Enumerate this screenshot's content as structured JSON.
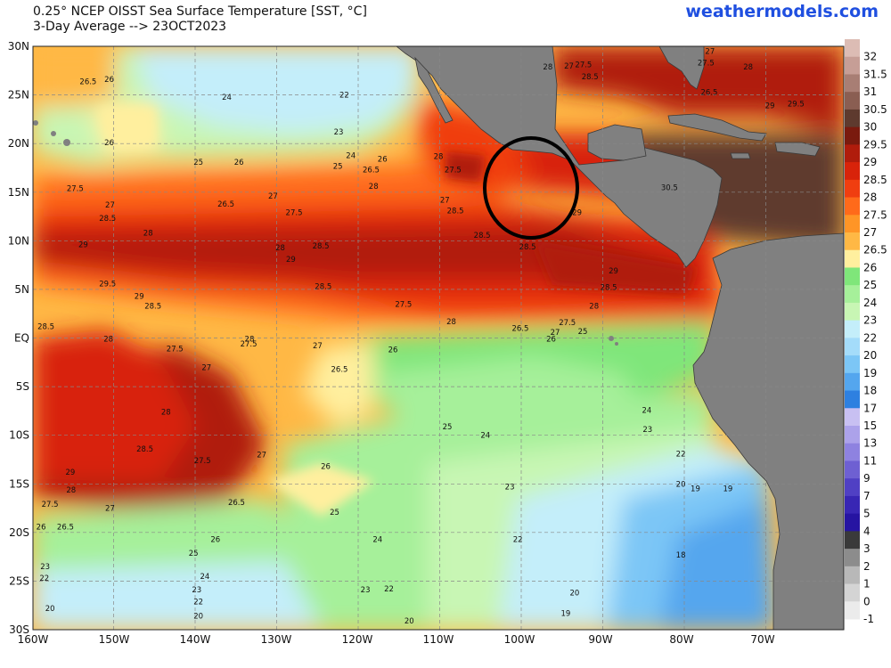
{
  "header": {
    "title_line1": "0.25° NCEP OISST Sea Surface Temperature [SST, °C]",
    "title_line2": "3-Day Average --> 23OCT2023",
    "brand": "weathermodels.com"
  },
  "axes": {
    "lat_labels": [
      "30N",
      "25N",
      "20N",
      "15N",
      "10N",
      "5N",
      "EQ",
      "5S",
      "10S",
      "15S",
      "20S",
      "25S",
      "30S"
    ],
    "lon_labels": [
      "160W",
      "150W",
      "140W",
      "130W",
      "120W",
      "110W",
      "100W",
      "90W",
      "80W",
      "70W"
    ]
  },
  "legend": {
    "levels": [
      {
        "label": "32",
        "color": "#dcbcb4"
      },
      {
        "label": "31.5",
        "color": "#c69e96"
      },
      {
        "label": "31",
        "color": "#a87e74"
      },
      {
        "label": "30.5",
        "color": "#8a5e52"
      },
      {
        "label": "30",
        "color": "#5e3a2e"
      },
      {
        "label": "29.5",
        "color": "#7a1a0e"
      },
      {
        "label": "29",
        "color": "#b01c0c"
      },
      {
        "label": "28.5",
        "color": "#d8230a"
      },
      {
        "label": "28",
        "color": "#f03e10"
      },
      {
        "label": "27.5",
        "color": "#ff6a1a"
      },
      {
        "label": "27",
        "color": "#ff9526"
      },
      {
        "label": "26.5",
        "color": "#ffb845"
      },
      {
        "label": "26",
        "color": "#ffef9e"
      },
      {
        "label": "25",
        "color": "#7fe67a"
      },
      {
        "label": "24",
        "color": "#a6f09a"
      },
      {
        "label": "23",
        "color": "#c8f6b4"
      },
      {
        "label": "22",
        "color": "#c4eefa"
      },
      {
        "label": "20",
        "color": "#a4dcfa"
      },
      {
        "label": "19",
        "color": "#7cc6f6"
      },
      {
        "label": "18",
        "color": "#54a6ee"
      },
      {
        "label": "17",
        "color": "#2e80e0"
      },
      {
        "label": "15",
        "color": "#c8c0f2"
      },
      {
        "label": "13",
        "color": "#aca2ea"
      },
      {
        "label": "11",
        "color": "#8e82e0"
      },
      {
        "label": "9",
        "color": "#6e60d2"
      },
      {
        "label": "7",
        "color": "#5040c4"
      },
      {
        "label": "5",
        "color": "#3826b4"
      },
      {
        "label": "4",
        "color": "#2614a2"
      },
      {
        "label": "3",
        "color": "#3a3a3a"
      },
      {
        "label": "2",
        "color": "#8c8c8c"
      },
      {
        "label": "1",
        "color": "#b8b8b8"
      },
      {
        "label": "0",
        "color": "#d4d4d4"
      },
      {
        "label": "-1",
        "color": "#ebebeb"
      }
    ]
  },
  "contour_labels": [
    {
      "t": "26.5",
      "lon": -153.2,
      "lat": 26.4
    },
    {
      "t": "26",
      "lon": -150.6,
      "lat": 26.6
    },
    {
      "t": "24",
      "lon": -136.1,
      "lat": 24.8
    },
    {
      "t": "22",
      "lon": -121.6,
      "lat": 25.0
    },
    {
      "t": "23",
      "lon": -122.3,
      "lat": 21.2
    },
    {
      "t": "26",
      "lon": -150.6,
      "lat": 20.1
    },
    {
      "t": "24",
      "lon": -120.8,
      "lat": 18.8
    },
    {
      "t": "25",
      "lon": -139.6,
      "lat": 18.1
    },
    {
      "t": "26",
      "lon": -134.6,
      "lat": 18.1
    },
    {
      "t": "25",
      "lon": -122.4,
      "lat": 17.7
    },
    {
      "t": "26",
      "lon": -116.9,
      "lat": 18.4
    },
    {
      "t": "26.5",
      "lon": -118.3,
      "lat": 17.3
    },
    {
      "t": "27.5",
      "lon": -154.8,
      "lat": 15.4
    },
    {
      "t": "28",
      "lon": -118.0,
      "lat": 15.6
    },
    {
      "t": "27",
      "lon": -150.5,
      "lat": 13.7
    },
    {
      "t": "26.5",
      "lon": -136.2,
      "lat": 13.8
    },
    {
      "t": "27",
      "lon": -130.4,
      "lat": 14.6
    },
    {
      "t": "27.5",
      "lon": -127.8,
      "lat": 12.9
    },
    {
      "t": "28.5",
      "lon": -150.8,
      "lat": 12.3
    },
    {
      "t": "28",
      "lon": -145.8,
      "lat": 10.8
    },
    {
      "t": "29",
      "lon": -153.8,
      "lat": 9.6
    },
    {
      "t": "28",
      "lon": -129.5,
      "lat": 9.3
    },
    {
      "t": "28.5",
      "lon": -124.5,
      "lat": 9.5
    },
    {
      "t": "29",
      "lon": -128.2,
      "lat": 8.1
    },
    {
      "t": "29.5",
      "lon": -150.8,
      "lat": 5.6
    },
    {
      "t": "28.5",
      "lon": -124.2,
      "lat": 5.3
    },
    {
      "t": "29",
      "lon": -146.9,
      "lat": 4.3
    },
    {
      "t": "28.5",
      "lon": -145.2,
      "lat": 3.3
    },
    {
      "t": "27.5",
      "lon": -114.3,
      "lat": 3.5
    },
    {
      "t": "28",
      "lon": -108.4,
      "lat": 1.7
    },
    {
      "t": "28.5",
      "lon": -158.4,
      "lat": 1.2
    },
    {
      "t": "28",
      "lon": -150.7,
      "lat": -0.1
    },
    {
      "t": "27.5",
      "lon": -142.5,
      "lat": -1.1
    },
    {
      "t": "28",
      "lon": -133.3,
      "lat": -0.1
    },
    {
      "t": "27.5",
      "lon": -133.4,
      "lat": -0.6
    },
    {
      "t": "27",
      "lon": -124.9,
      "lat": -0.8
    },
    {
      "t": "27",
      "lon": -138.6,
      "lat": -3.0
    },
    {
      "t": "26.5",
      "lon": -122.2,
      "lat": -3.2
    },
    {
      "t": "26",
      "lon": -115.6,
      "lat": -1.2
    },
    {
      "t": "26.5",
      "lon": -99.9,
      "lat": 1.0
    },
    {
      "t": "26",
      "lon": -96.1,
      "lat": -0.1
    },
    {
      "t": "27",
      "lon": -95.6,
      "lat": 0.6
    },
    {
      "t": "27.5",
      "lon": -94.1,
      "lat": 1.6
    },
    {
      "t": "25",
      "lon": -92.2,
      "lat": 0.7
    },
    {
      "t": "28",
      "lon": -90.8,
      "lat": 3.3
    },
    {
      "t": "28.5",
      "lon": -89.0,
      "lat": 5.2
    },
    {
      "t": "29",
      "lon": -88.4,
      "lat": 6.9
    },
    {
      "t": "28",
      "lon": -143.6,
      "lat": -7.6
    },
    {
      "t": "25",
      "lon": -108.9,
      "lat": -9.1
    },
    {
      "t": "24",
      "lon": -104.2,
      "lat": -10.0
    },
    {
      "t": "24",
      "lon": -84.3,
      "lat": -7.4
    },
    {
      "t": "23",
      "lon": -84.2,
      "lat": -9.4
    },
    {
      "t": "28.5",
      "lon": -146.2,
      "lat": -11.4
    },
    {
      "t": "27.5",
      "lon": -139.1,
      "lat": -12.6
    },
    {
      "t": "27",
      "lon": -131.8,
      "lat": -12.0
    },
    {
      "t": "22",
      "lon": -80.1,
      "lat": -11.9
    },
    {
      "t": "26",
      "lon": -123.9,
      "lat": -13.2
    },
    {
      "t": "29",
      "lon": -155.4,
      "lat": -13.8
    },
    {
      "t": "23",
      "lon": -101.2,
      "lat": -15.3
    },
    {
      "t": "20",
      "lon": -80.1,
      "lat": -15.0
    },
    {
      "t": "19",
      "lon": -78.3,
      "lat": -15.5
    },
    {
      "t": "19",
      "lon": -74.3,
      "lat": -15.5
    },
    {
      "t": "28",
      "lon": -155.3,
      "lat": -15.6
    },
    {
      "t": "26.5",
      "lon": -134.9,
      "lat": -16.9
    },
    {
      "t": "27",
      "lon": -150.5,
      "lat": -17.5
    },
    {
      "t": "27.5",
      "lon": -157.9,
      "lat": -17.1
    },
    {
      "t": "25",
      "lon": -122.8,
      "lat": -17.9
    },
    {
      "t": "26",
      "lon": -159.0,
      "lat": -19.4
    },
    {
      "t": "26.5",
      "lon": -156.0,
      "lat": -19.4
    },
    {
      "t": "24",
      "lon": -117.5,
      "lat": -20.7
    },
    {
      "t": "26",
      "lon": -137.5,
      "lat": -20.7
    },
    {
      "t": "22",
      "lon": -100.2,
      "lat": -20.7
    },
    {
      "t": "25",
      "lon": -140.2,
      "lat": -22.1
    },
    {
      "t": "18",
      "lon": -80.1,
      "lat": -22.3
    },
    {
      "t": "23",
      "lon": -158.5,
      "lat": -23.5
    },
    {
      "t": "22",
      "lon": -158.6,
      "lat": -24.7
    },
    {
      "t": "24",
      "lon": -138.8,
      "lat": -24.5
    },
    {
      "t": "23",
      "lon": -139.8,
      "lat": -25.9
    },
    {
      "t": "23",
      "lon": -119.0,
      "lat": -25.9
    },
    {
      "t": "22",
      "lon": -116.1,
      "lat": -25.8
    },
    {
      "t": "20",
      "lon": -93.2,
      "lat": -26.2
    },
    {
      "t": "22",
      "lon": -139.6,
      "lat": -27.1
    },
    {
      "t": "20",
      "lon": -157.9,
      "lat": -27.8
    },
    {
      "t": "19",
      "lon": -94.3,
      "lat": -28.3
    },
    {
      "t": "20",
      "lon": -139.6,
      "lat": -28.6
    },
    {
      "t": "20",
      "lon": -113.6,
      "lat": -29.1
    },
    {
      "t": "28",
      "lon": -110.0,
      "lat": 18.7
    },
    {
      "t": "27.5",
      "lon": -108.2,
      "lat": 17.3
    },
    {
      "t": "27",
      "lon": -109.2,
      "lat": 14.2
    },
    {
      "t": "28.5",
      "lon": -107.9,
      "lat": 13.1
    },
    {
      "t": "28.5",
      "lon": -104.6,
      "lat": 10.6
    },
    {
      "t": "28.5",
      "lon": -99.0,
      "lat": 9.4
    },
    {
      "t": "29",
      "lon": -92.9,
      "lat": 12.9
    },
    {
      "t": "28",
      "lon": -96.5,
      "lat": 27.9
    },
    {
      "t": "27",
      "lon": -93.9,
      "lat": 28.0
    },
    {
      "t": "27.5",
      "lon": -92.1,
      "lat": 28.1
    },
    {
      "t": "28.5",
      "lon": -91.3,
      "lat": 26.9
    },
    {
      "t": "27",
      "lon": -76.5,
      "lat": 29.5
    },
    {
      "t": "27.5",
      "lon": -77.0,
      "lat": 28.3
    },
    {
      "t": "28",
      "lon": -71.8,
      "lat": 27.9
    },
    {
      "t": "26.5",
      "lon": -76.6,
      "lat": 25.3
    },
    {
      "t": "29",
      "lon": -69.1,
      "lat": 23.9
    },
    {
      "t": "29.5",
      "lon": -65.9,
      "lat": 24.1
    },
    {
      "t": "30.5",
      "lon": -81.5,
      "lat": 15.5
    }
  ]
}
